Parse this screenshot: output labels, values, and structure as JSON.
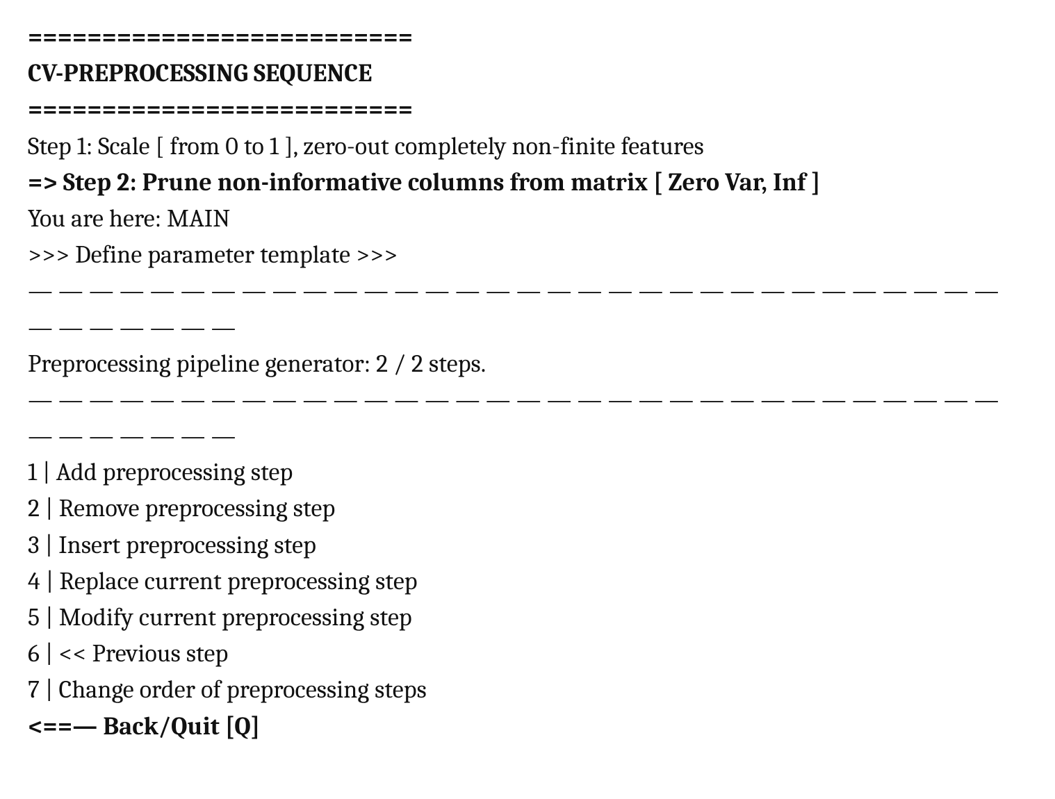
{
  "colors": {
    "bg": "#ffffff",
    "fg": "#111111"
  },
  "typography": {
    "family": "serif",
    "base_size_pt": 27,
    "bold_weight": 700
  },
  "header": {
    "rule": "==========================",
    "title": "CV-PREPROCESSING SEQUENCE"
  },
  "steps": {
    "step1": "Step 1: Scale [ from 0 to 1 ], zero-out completely non-finite features",
    "step2": "=> Step 2: Prune non-informative columns from matrix [ Zero Var, Inf ]"
  },
  "context": {
    "breadcrumb": "You are here: MAIN",
    "prompt": ">>> Define parameter template >>>"
  },
  "divider": "— — — — — — — — — — — — — — — — — — — — — — — — — — — — — — — — — — — — — — —",
  "status": {
    "line": "Preprocessing pipeline generator: 2 / 2 steps.",
    "current": 2,
    "total": 2
  },
  "menu": {
    "items": [
      {
        "key": "1",
        "label": "Add preprocessing step",
        "line": "1 | Add preprocessing step"
      },
      {
        "key": "2",
        "label": "Remove preprocessing step",
        "line": "2 | Remove preprocessing step"
      },
      {
        "key": "3",
        "label": "Insert preprocessing step",
        "line": "3 | Insert preprocessing step"
      },
      {
        "key": "4",
        "label": "Replace current preprocessing step",
        "line": "4 | Replace current preprocessing step"
      },
      {
        "key": "5",
        "label": "Modify current preprocessing step",
        "line": "5 | Modify current preprocessing step"
      },
      {
        "key": "6",
        "label": "<< Previous step",
        "line": "6 | << Previous step"
      },
      {
        "key": "7",
        "label": "Change order of preprocessing steps",
        "line": "7 | Change order of preprocessing steps"
      }
    ],
    "back": "<==— Back/Quit [Q]"
  }
}
